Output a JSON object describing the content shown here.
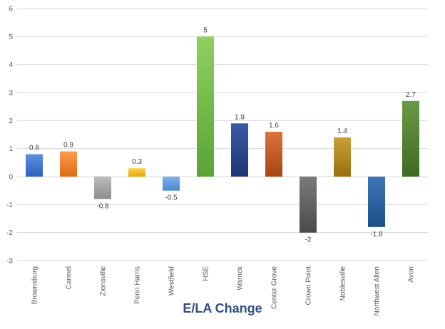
{
  "chart_data": {
    "type": "bar",
    "title": "E/LA Change",
    "xlabel": "",
    "ylabel": "",
    "categories": [
      "Brownsburg",
      "Carmel",
      "Zionsville",
      "Penn Harris",
      "Westfield",
      "HSE",
      "Warrick",
      "Center Grove",
      "Crown Point",
      "Noblesville",
      "Northwest Allen",
      "Avon"
    ],
    "values": [
      0.8,
      0.9,
      -0.8,
      0.3,
      -0.5,
      5,
      1.9,
      1.6,
      -2,
      1.4,
      -1.8,
      2.7
    ],
    "data_labels": [
      "0.8",
      "0.9",
      "-0.8",
      "0.3",
      "-0.5",
      "5",
      "1.9",
      "1.6",
      "-2",
      "1.4",
      "-1.8",
      "2.7"
    ],
    "ylim": [
      -3,
      6
    ],
    "yticks": [
      "-3",
      "-2",
      "-1",
      "0",
      "1",
      "2",
      "3",
      "4",
      "5",
      "6"
    ],
    "grid": true,
    "legend": "none",
    "bar_colors": [
      [
        "#5b8fe0",
        "#2f62c0"
      ],
      [
        "#ff9a4d",
        "#e06a12"
      ],
      [
        "#bdbdbd",
        "#8c8c8c"
      ],
      [
        "#ffd24d",
        "#e6a800"
      ],
      [
        "#7fb2ea",
        "#4a86cf"
      ],
      [
        "#8fd15f",
        "#5aa335"
      ],
      [
        "#3a5aa6",
        "#1f3472"
      ],
      [
        "#d9743a",
        "#a84515"
      ],
      [
        "#7a7a7a",
        "#4a4a4a"
      ],
      [
        "#c9a03a",
        "#97700f"
      ],
      [
        "#3f76b8",
        "#1b4f8a"
      ],
      [
        "#6a9a45",
        "#3d6b24"
      ]
    ]
  }
}
